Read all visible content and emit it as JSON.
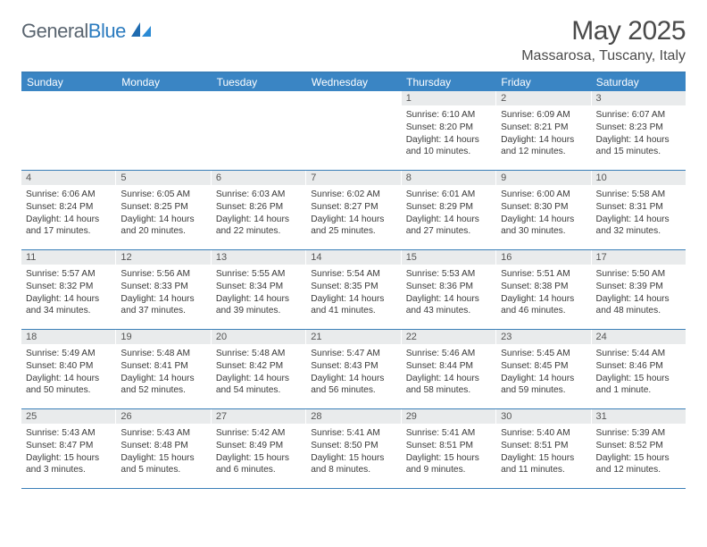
{
  "logo": {
    "text1": "General",
    "text2": "Blue"
  },
  "header": {
    "month_title": "May 2025",
    "location": "Massarosa, Tuscany, Italy"
  },
  "colors": {
    "header_bar": "#3a85c4",
    "accent_line": "#3a7fb8",
    "daynum_bg": "#e9ebec",
    "logo_gray": "#5a6570",
    "logo_blue": "#2b7bbf",
    "text": "#3a3a3a"
  },
  "weekdays": [
    "Sunday",
    "Monday",
    "Tuesday",
    "Wednesday",
    "Thursday",
    "Friday",
    "Saturday"
  ],
  "weeks": [
    [
      {
        "n": "",
        "sr": "",
        "ss": "",
        "dl": ""
      },
      {
        "n": "",
        "sr": "",
        "ss": "",
        "dl": ""
      },
      {
        "n": "",
        "sr": "",
        "ss": "",
        "dl": ""
      },
      {
        "n": "",
        "sr": "",
        "ss": "",
        "dl": ""
      },
      {
        "n": "1",
        "sr": "Sunrise: 6:10 AM",
        "ss": "Sunset: 8:20 PM",
        "dl": "Daylight: 14 hours and 10 minutes."
      },
      {
        "n": "2",
        "sr": "Sunrise: 6:09 AM",
        "ss": "Sunset: 8:21 PM",
        "dl": "Daylight: 14 hours and 12 minutes."
      },
      {
        "n": "3",
        "sr": "Sunrise: 6:07 AM",
        "ss": "Sunset: 8:23 PM",
        "dl": "Daylight: 14 hours and 15 minutes."
      }
    ],
    [
      {
        "n": "4",
        "sr": "Sunrise: 6:06 AM",
        "ss": "Sunset: 8:24 PM",
        "dl": "Daylight: 14 hours and 17 minutes."
      },
      {
        "n": "5",
        "sr": "Sunrise: 6:05 AM",
        "ss": "Sunset: 8:25 PM",
        "dl": "Daylight: 14 hours and 20 minutes."
      },
      {
        "n": "6",
        "sr": "Sunrise: 6:03 AM",
        "ss": "Sunset: 8:26 PM",
        "dl": "Daylight: 14 hours and 22 minutes."
      },
      {
        "n": "7",
        "sr": "Sunrise: 6:02 AM",
        "ss": "Sunset: 8:27 PM",
        "dl": "Daylight: 14 hours and 25 minutes."
      },
      {
        "n": "8",
        "sr": "Sunrise: 6:01 AM",
        "ss": "Sunset: 8:29 PM",
        "dl": "Daylight: 14 hours and 27 minutes."
      },
      {
        "n": "9",
        "sr": "Sunrise: 6:00 AM",
        "ss": "Sunset: 8:30 PM",
        "dl": "Daylight: 14 hours and 30 minutes."
      },
      {
        "n": "10",
        "sr": "Sunrise: 5:58 AM",
        "ss": "Sunset: 8:31 PM",
        "dl": "Daylight: 14 hours and 32 minutes."
      }
    ],
    [
      {
        "n": "11",
        "sr": "Sunrise: 5:57 AM",
        "ss": "Sunset: 8:32 PM",
        "dl": "Daylight: 14 hours and 34 minutes."
      },
      {
        "n": "12",
        "sr": "Sunrise: 5:56 AM",
        "ss": "Sunset: 8:33 PM",
        "dl": "Daylight: 14 hours and 37 minutes."
      },
      {
        "n": "13",
        "sr": "Sunrise: 5:55 AM",
        "ss": "Sunset: 8:34 PM",
        "dl": "Daylight: 14 hours and 39 minutes."
      },
      {
        "n": "14",
        "sr": "Sunrise: 5:54 AM",
        "ss": "Sunset: 8:35 PM",
        "dl": "Daylight: 14 hours and 41 minutes."
      },
      {
        "n": "15",
        "sr": "Sunrise: 5:53 AM",
        "ss": "Sunset: 8:36 PM",
        "dl": "Daylight: 14 hours and 43 minutes."
      },
      {
        "n": "16",
        "sr": "Sunrise: 5:51 AM",
        "ss": "Sunset: 8:38 PM",
        "dl": "Daylight: 14 hours and 46 minutes."
      },
      {
        "n": "17",
        "sr": "Sunrise: 5:50 AM",
        "ss": "Sunset: 8:39 PM",
        "dl": "Daylight: 14 hours and 48 minutes."
      }
    ],
    [
      {
        "n": "18",
        "sr": "Sunrise: 5:49 AM",
        "ss": "Sunset: 8:40 PM",
        "dl": "Daylight: 14 hours and 50 minutes."
      },
      {
        "n": "19",
        "sr": "Sunrise: 5:48 AM",
        "ss": "Sunset: 8:41 PM",
        "dl": "Daylight: 14 hours and 52 minutes."
      },
      {
        "n": "20",
        "sr": "Sunrise: 5:48 AM",
        "ss": "Sunset: 8:42 PM",
        "dl": "Daylight: 14 hours and 54 minutes."
      },
      {
        "n": "21",
        "sr": "Sunrise: 5:47 AM",
        "ss": "Sunset: 8:43 PM",
        "dl": "Daylight: 14 hours and 56 minutes."
      },
      {
        "n": "22",
        "sr": "Sunrise: 5:46 AM",
        "ss": "Sunset: 8:44 PM",
        "dl": "Daylight: 14 hours and 58 minutes."
      },
      {
        "n": "23",
        "sr": "Sunrise: 5:45 AM",
        "ss": "Sunset: 8:45 PM",
        "dl": "Daylight: 14 hours and 59 minutes."
      },
      {
        "n": "24",
        "sr": "Sunrise: 5:44 AM",
        "ss": "Sunset: 8:46 PM",
        "dl": "Daylight: 15 hours and 1 minute."
      }
    ],
    [
      {
        "n": "25",
        "sr": "Sunrise: 5:43 AM",
        "ss": "Sunset: 8:47 PM",
        "dl": "Daylight: 15 hours and 3 minutes."
      },
      {
        "n": "26",
        "sr": "Sunrise: 5:43 AM",
        "ss": "Sunset: 8:48 PM",
        "dl": "Daylight: 15 hours and 5 minutes."
      },
      {
        "n": "27",
        "sr": "Sunrise: 5:42 AM",
        "ss": "Sunset: 8:49 PM",
        "dl": "Daylight: 15 hours and 6 minutes."
      },
      {
        "n": "28",
        "sr": "Sunrise: 5:41 AM",
        "ss": "Sunset: 8:50 PM",
        "dl": "Daylight: 15 hours and 8 minutes."
      },
      {
        "n": "29",
        "sr": "Sunrise: 5:41 AM",
        "ss": "Sunset: 8:51 PM",
        "dl": "Daylight: 15 hours and 9 minutes."
      },
      {
        "n": "30",
        "sr": "Sunrise: 5:40 AM",
        "ss": "Sunset: 8:51 PM",
        "dl": "Daylight: 15 hours and 11 minutes."
      },
      {
        "n": "31",
        "sr": "Sunrise: 5:39 AM",
        "ss": "Sunset: 8:52 PM",
        "dl": "Daylight: 15 hours and 12 minutes."
      }
    ]
  ]
}
